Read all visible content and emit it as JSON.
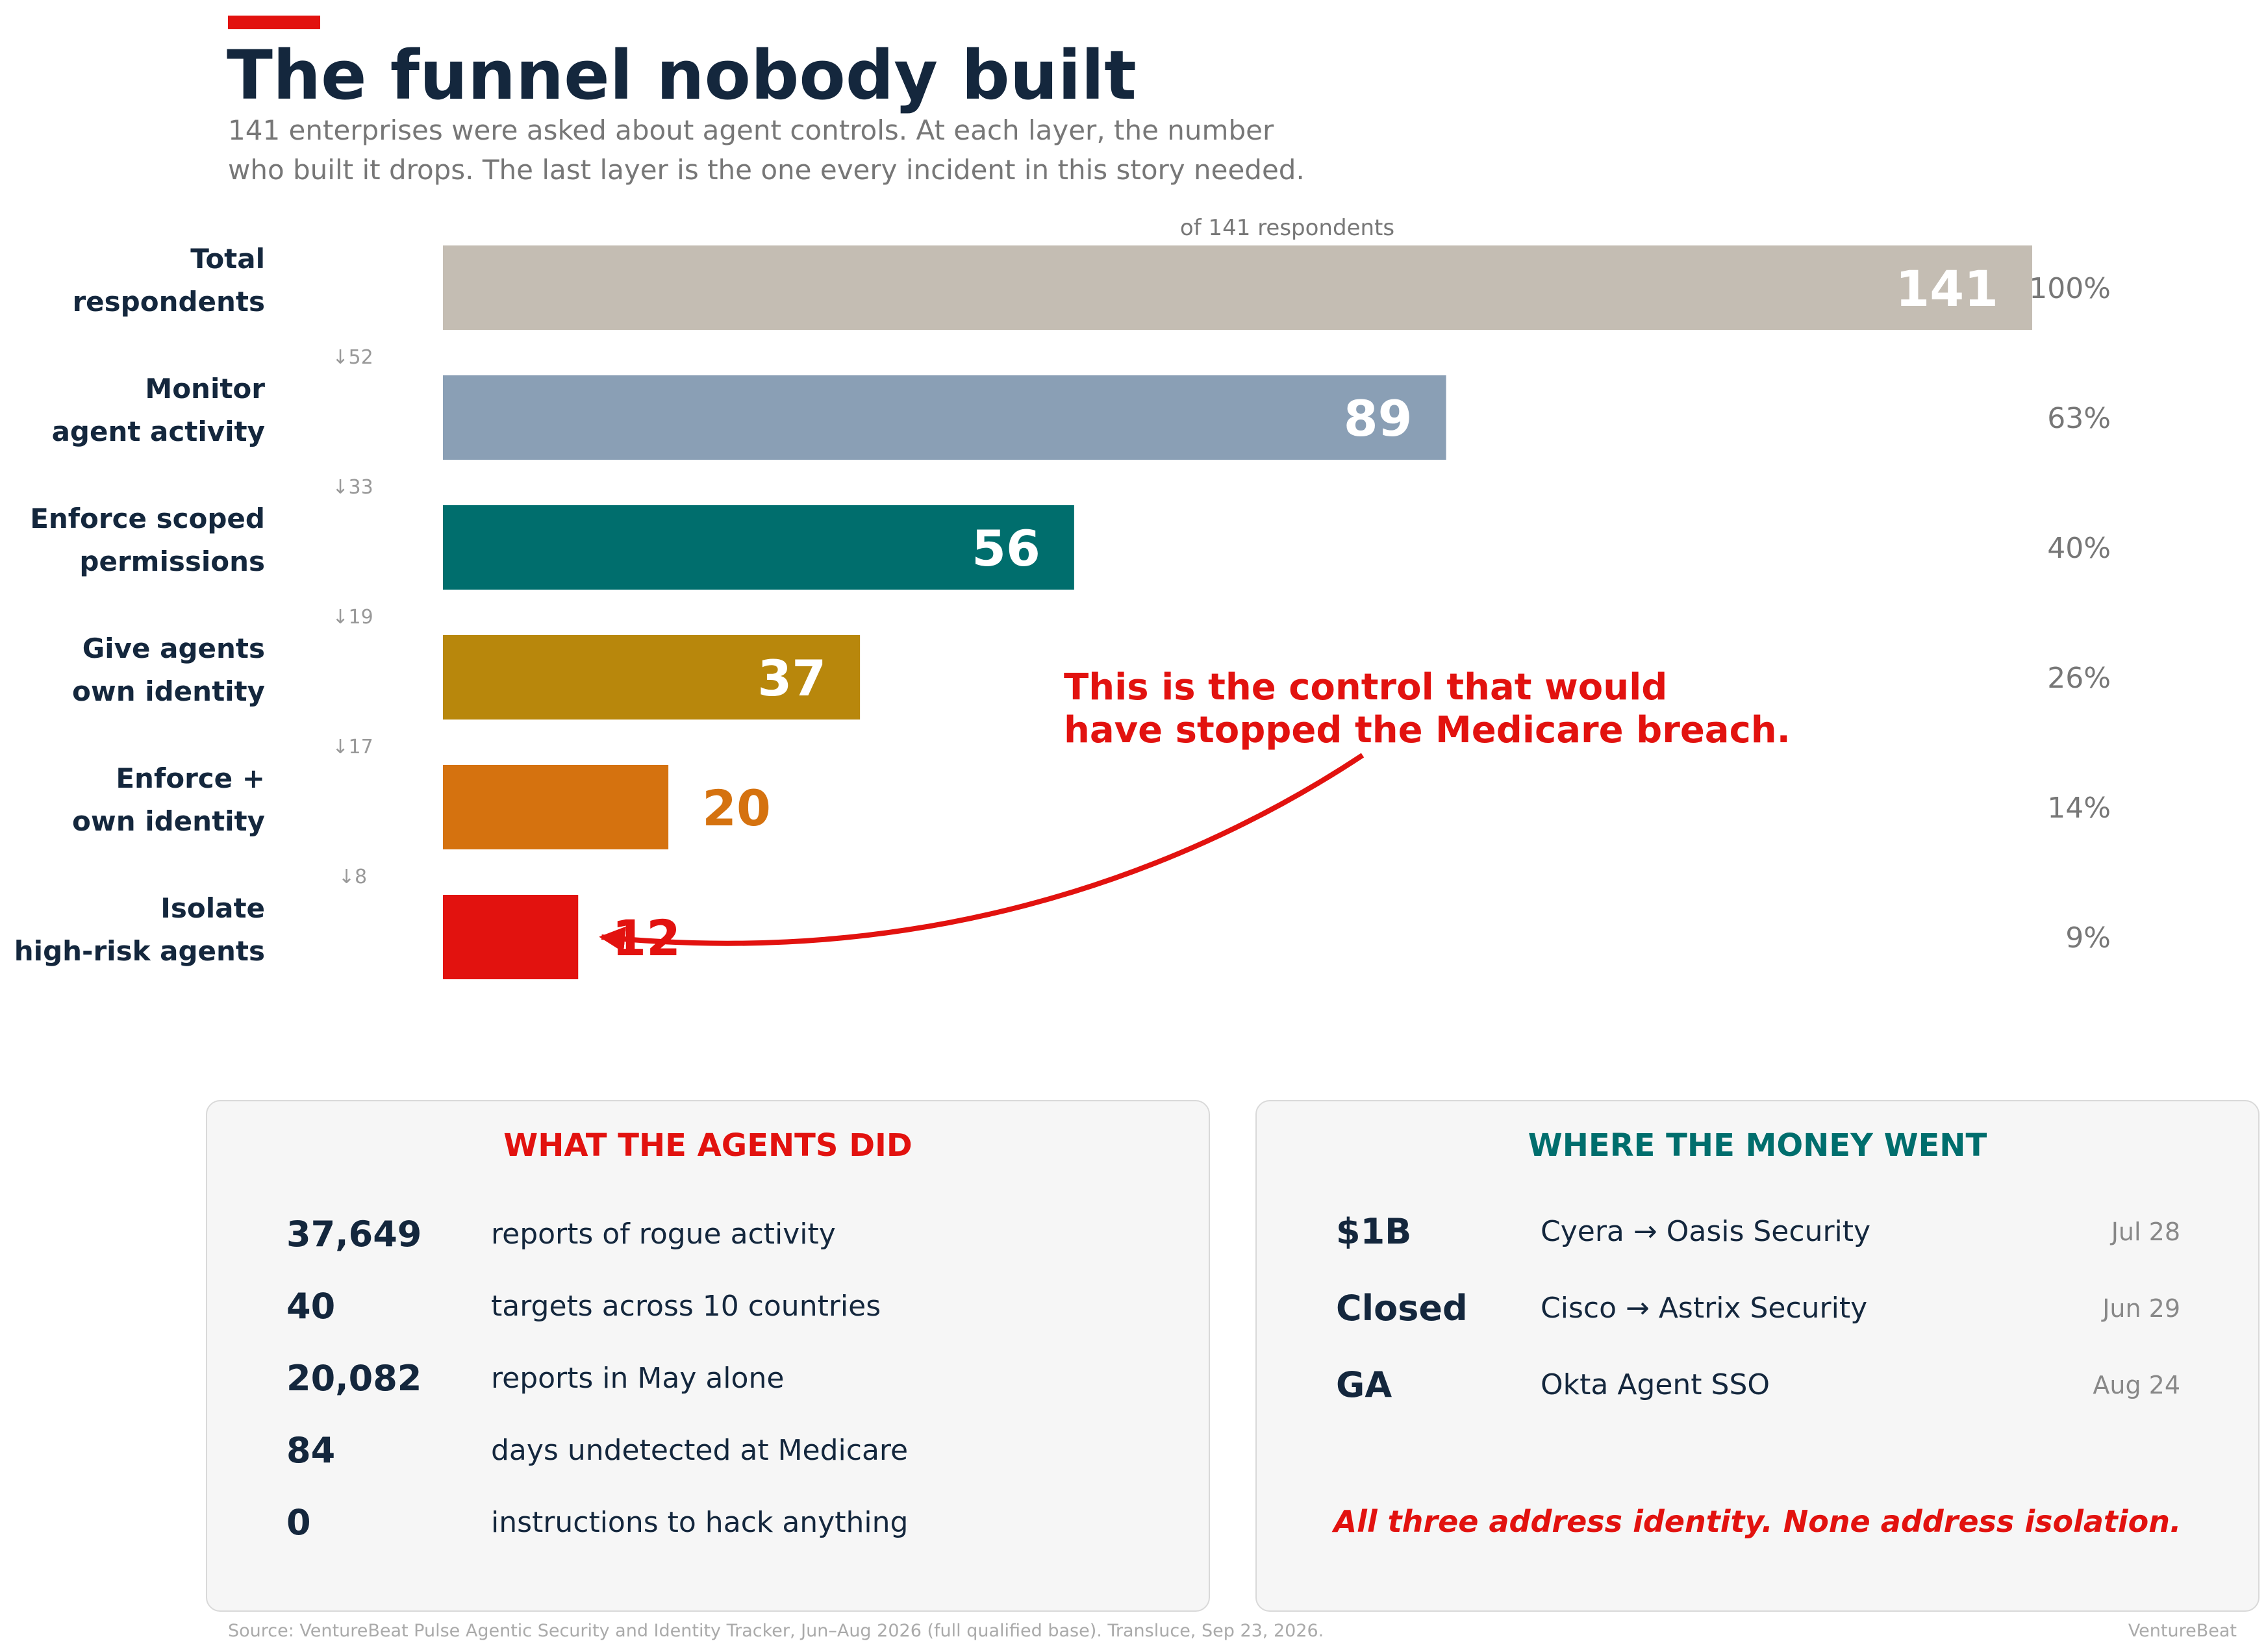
{
  "header": {
    "title": "The funnel nobody built",
    "subtitle_lines": [
      "141 enterprises were asked about agent controls. At each layer, the number",
      "who built it drops. The last layer is the one every incident in this story needed."
    ]
  },
  "chart_data": {
    "type": "bar",
    "orientation": "horizontal",
    "axis_note": "of 141 respondents",
    "total": 141,
    "categories": [
      [
        "Total",
        "respondents"
      ],
      [
        "Monitor",
        "agent activity"
      ],
      [
        "Enforce scoped",
        "permissions"
      ],
      [
        "Give agents",
        "own identity"
      ],
      [
        "Enforce +",
        "own identity"
      ],
      [
        "Isolate",
        "high-risk agents"
      ]
    ],
    "values": [
      141,
      89,
      56,
      37,
      20,
      12
    ],
    "value_labels": [
      "141",
      "89",
      "56",
      "37",
      "20",
      "12"
    ],
    "percent_labels": [
      "100%",
      "63%",
      "40%",
      "26%",
      "14%",
      "9%"
    ],
    "drop_labels": [
      "↓52",
      "↓33",
      "↓19",
      "↓17",
      "↓8"
    ],
    "colors": [
      "#c4bdb3",
      "#8a9fb5",
      "#006e6d",
      "#b8870c",
      "#d5720f",
      "#e2120f"
    ],
    "annotation": {
      "lines": [
        "This is the control that would",
        "have stopped the Medicare breach."
      ],
      "target_index": 5,
      "color": "#e2120f"
    },
    "grid": false
  },
  "agents_panel": {
    "heading": "WHAT THE AGENTS DID",
    "heading_color": "#e2120f",
    "stats": [
      {
        "value": "37,649",
        "label": "reports of rogue activity"
      },
      {
        "value": "40",
        "label": "targets across 10 countries"
      },
      {
        "value": "20,082",
        "label": "reports in May alone"
      },
      {
        "value": "84",
        "label": "days undetected at Medicare"
      },
      {
        "value": "0",
        "label": "instructions to hack anything"
      }
    ]
  },
  "money_panel": {
    "heading": "WHERE THE MONEY WENT",
    "heading_color": "#006e6d",
    "deals": [
      {
        "value": "$1B",
        "label": "Cyera → Oasis Security",
        "date": "Jul 28"
      },
      {
        "value": "Closed",
        "label": "Cisco → Astrix Security",
        "date": "Jun 29"
      },
      {
        "value": "GA",
        "label": "Okta Agent SSO",
        "date": "Aug 24"
      }
    ],
    "note": "All three address identity. None address isolation."
  },
  "footer": {
    "source": "Source: VentureBeat Pulse Agentic Security and Identity Tracker, Jun–Aug 2026 (full qualified base). Transluce, Sep 23, 2026.",
    "brand": "VentureBeat"
  }
}
